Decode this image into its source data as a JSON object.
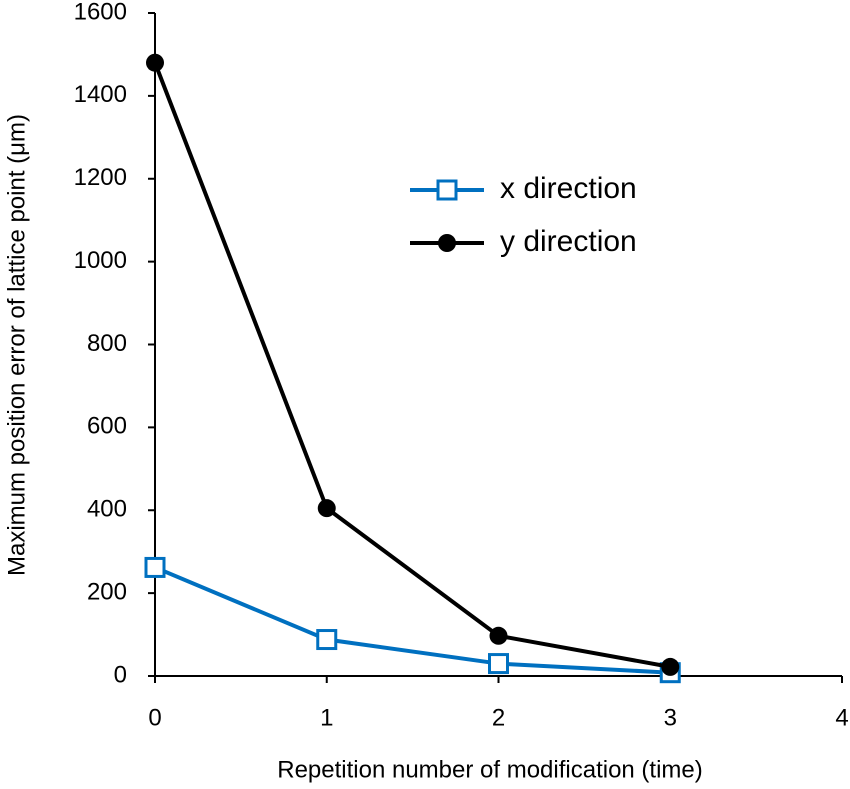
{
  "chart_data": {
    "type": "line",
    "x_label": "Repetition number of modification (time)",
    "y_label": "Maximum position error of lattice point (μm)",
    "x": [
      0,
      1,
      2,
      3
    ],
    "series": [
      {
        "name": "x direction",
        "color": "#0070c0",
        "marker": "open-square",
        "values": [
          262,
          88,
          30,
          8
        ]
      },
      {
        "name": "y direction",
        "color": "#000000",
        "marker": "circle",
        "values": [
          1480,
          405,
          97,
          22
        ]
      }
    ],
    "xlim": [
      0,
      4
    ],
    "xticks": [
      0,
      1,
      2,
      3,
      4
    ],
    "ylim": [
      0,
      1600
    ],
    "yticks": [
      0,
      200,
      400,
      600,
      800,
      1000,
      1200,
      1400,
      1600
    ],
    "grid": false,
    "legend": "upper center"
  }
}
